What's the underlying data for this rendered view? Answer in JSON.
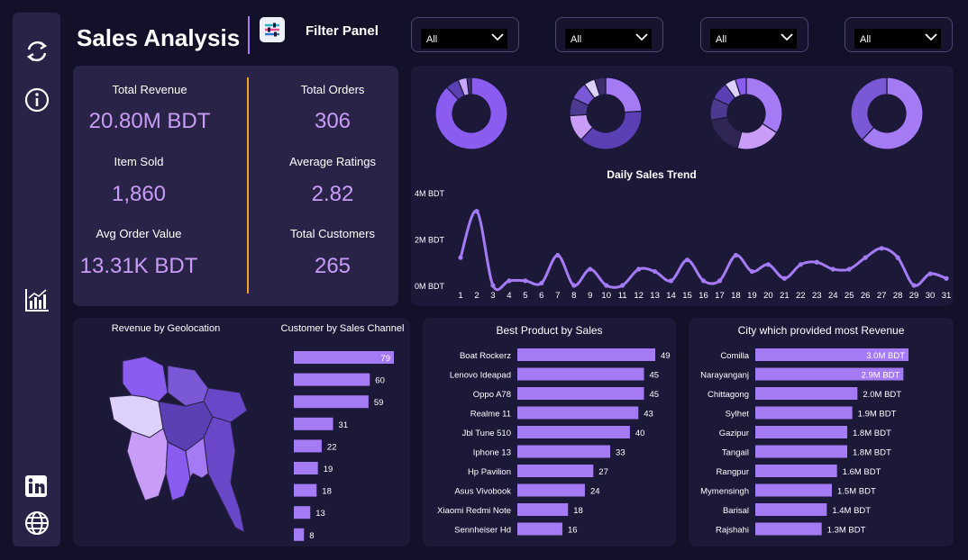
{
  "header": {
    "title": "Sales Analysis",
    "filter_title": "Filter Panel"
  },
  "sidebar": {
    "items": [
      "refresh-icon",
      "info-icon",
      "chart-icon",
      "linkedin-icon",
      "globe-icon"
    ]
  },
  "slicers": [
    {
      "value": "All"
    },
    {
      "value": "All"
    },
    {
      "value": "All"
    },
    {
      "value": "All"
    }
  ],
  "kpis": {
    "total_revenue": {
      "label": "Total Revenue",
      "value": "20.80M BDT"
    },
    "total_orders": {
      "label": "Total Orders",
      "value": "306"
    },
    "item_sold": {
      "label": "Item Sold",
      "value": "1,860"
    },
    "average_ratings": {
      "label": "Average Ratings",
      "value": "2.82"
    },
    "avg_order_value": {
      "label": "Avg Order Value",
      "value": "13.31K BDT"
    },
    "total_customers": {
      "label": "Total Customers",
      "value": "265"
    }
  },
  "colors": {
    "accent": "#a57bf5",
    "divider": "#f3a423",
    "panel": "#2a2348",
    "background": "#13102a"
  },
  "chart_data": [
    {
      "type": "pie",
      "variant": "donut",
      "values": [
        88,
        6,
        4,
        2
      ],
      "colors": [
        "#8a5cf0",
        "#5b3fb5",
        "#c7a7fb",
        "#3a2f6b"
      ]
    },
    {
      "type": "pie",
      "variant": "donut",
      "values": [
        24,
        38,
        12,
        8,
        8,
        5,
        5
      ],
      "colors": [
        "#a57bf5",
        "#5b3fb5",
        "#c99cf7",
        "#4b3a90",
        "#7a58d6",
        "#ddd0fb",
        "#3a2f6b"
      ]
    },
    {
      "type": "pie",
      "variant": "donut",
      "values": [
        34,
        20,
        18,
        10,
        8,
        5,
        5
      ],
      "colors": [
        "#a57bf5",
        "#c99cf7",
        "#2f2656",
        "#4b3a90",
        "#5b3fb5",
        "#ddd0fb",
        "#8a5cf0"
      ]
    },
    {
      "type": "pie",
      "variant": "donut",
      "values": [
        62,
        38
      ],
      "colors": [
        "#a57bf5",
        "#7a58d6"
      ]
    },
    {
      "type": "line",
      "title": "Daily Sales Trend",
      "x": [
        1,
        2,
        3,
        4,
        5,
        6,
        7,
        8,
        9,
        10,
        11,
        12,
        13,
        14,
        15,
        16,
        17,
        18,
        19,
        20,
        21,
        22,
        23,
        24,
        25,
        26,
        27,
        28,
        29,
        30,
        31
      ],
      "y_ticks": [
        "4M BDT",
        "2M BDT",
        "0M BDT"
      ],
      "ylim": [
        0,
        4000000
      ],
      "series": [
        {
          "values": [
            1200000,
            3200000,
            0,
            200000,
            200000,
            100000,
            1300000,
            0,
            700000,
            0,
            0,
            700000,
            600000,
            200000,
            1100000,
            200000,
            200000,
            1300000,
            600000,
            900000,
            300000,
            900000,
            1000000,
            700000,
            700000,
            1200000,
            1600000,
            1200000,
            0,
            500000,
            300000
          ]
        }
      ]
    },
    {
      "type": "map",
      "title": "Revenue by Geolocation",
      "regions": 8
    },
    {
      "type": "bar",
      "orientation": "horizontal",
      "title": "Customer by Sales Channel",
      "categories": [
        "",
        "",
        "",
        "",
        "",
        "",
        "",
        "",
        ""
      ],
      "values": [
        79,
        60,
        59,
        31,
        22,
        19,
        18,
        13,
        8
      ]
    },
    {
      "type": "bar",
      "orientation": "horizontal",
      "title": "Best Product by Sales",
      "categories": [
        "Boat Rockerz",
        "Lenovo Ideapad",
        "Oppo A78",
        "Realme 11",
        "Jbl Tune 510",
        "Iphone 13",
        "Hp Pavilion",
        "Asus Vivobook",
        "Xiaomi Redmi Note",
        "Sennheiser Hd"
      ],
      "values": [
        49,
        45,
        45,
        43,
        40,
        33,
        27,
        24,
        18,
        16
      ]
    },
    {
      "type": "bar",
      "orientation": "horizontal",
      "title": "City which provided most Revenue",
      "categories": [
        "Comilla",
        "Narayanganj",
        "Chittagong",
        "Sylhet",
        "Gazipur",
        "Tangail",
        "Rangpur",
        "Mymensingh",
        "Barisal",
        "Rajshahi"
      ],
      "values": [
        3.0,
        2.9,
        2.0,
        1.9,
        1.8,
        1.8,
        1.6,
        1.5,
        1.4,
        1.3
      ],
      "value_labels": [
        "3.0M BDT",
        "2.9M BDT",
        "2.0M BDT",
        "1.9M BDT",
        "1.8M BDT",
        "1.8M BDT",
        "1.6M BDT",
        "1.5M BDT",
        "1.4M BDT",
        "1.3M BDT"
      ]
    }
  ]
}
